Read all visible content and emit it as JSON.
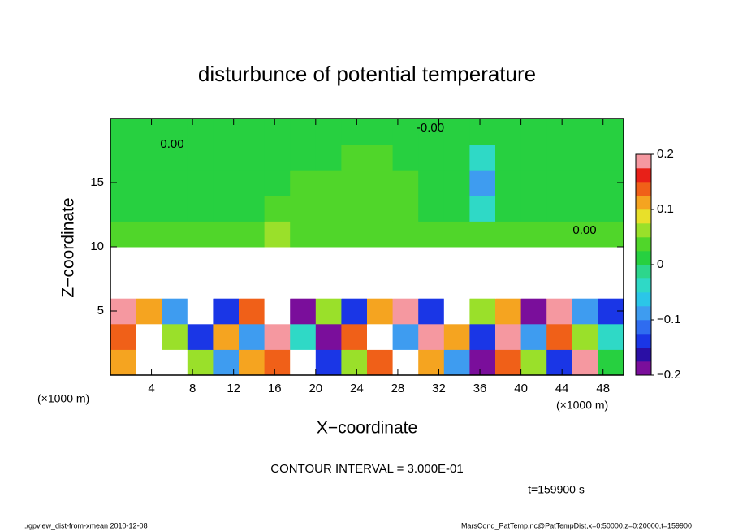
{
  "chart_data": {
    "type": "heatmap",
    "title": "disturbunce of potential temperature",
    "x_label": "X−coordinate",
    "y_label": "Z−coordinate",
    "x_unit": "(×1000 m)",
    "xlim": [
      0,
      50
    ],
    "xticks": [
      4,
      8,
      12,
      16,
      20,
      24,
      28,
      32,
      36,
      40,
      44,
      48
    ],
    "ylim": [
      0,
      20
    ],
    "yticks": [
      5,
      10,
      15
    ],
    "x": [
      1.25,
      3.75,
      6.25,
      8.75,
      11.25,
      13.75,
      16.25,
      18.75,
      21.25,
      23.75,
      26.25,
      28.75,
      31.25,
      33.75,
      36.25,
      38.75,
      41.25,
      43.75,
      46.25,
      48.75
    ],
    "z": [
      1,
      3,
      5,
      7,
      9,
      11,
      13,
      15,
      17,
      19
    ],
    "values": [
      [
        0.1,
        0.25,
        0.25,
        0.05,
        -0.1,
        0.1,
        0.15,
        0.25,
        -0.15,
        0.05,
        0.15,
        0.25,
        0.1,
        -0.1,
        -0.2,
        0.15,
        0.05,
        -0.15,
        0.2,
        0.0
      ],
      [
        0.15,
        0.25,
        0.05,
        -0.15,
        0.1,
        -0.1,
        0.2,
        -0.05,
        -0.2,
        0.15,
        0.25,
        -0.1,
        0.2,
        0.1,
        -0.15,
        0.2,
        -0.1,
        0.15,
        0.05,
        -0.05
      ],
      [
        0.2,
        0.1,
        -0.1,
        0.25,
        -0.15,
        0.15,
        0.25,
        -0.2,
        0.05,
        -0.15,
        0.1,
        0.2,
        -0.15,
        0.25,
        0.05,
        0.1,
        -0.2,
        0.2,
        -0.1,
        -0.15
      ],
      [
        0.3,
        0.3,
        0.3,
        0.3,
        0.3,
        0.3,
        0.3,
        0.3,
        0.3,
        0.3,
        0.3,
        0.3,
        0.3,
        0.3,
        0.3,
        0.3,
        0.3,
        0.3,
        0.3,
        0.3
      ],
      [
        0.3,
        0.3,
        0.3,
        0.3,
        0.3,
        0.3,
        0.3,
        0.3,
        0.3,
        0.3,
        0.3,
        0.3,
        0.3,
        0.3,
        0.3,
        0.3,
        0.3,
        0.3,
        0.3,
        0.3
      ],
      [
        0.03,
        0.03,
        0.04,
        0.03,
        0.03,
        0.04,
        0.05,
        0.04,
        0.03,
        0.04,
        0.03,
        0.03,
        0.04,
        0.03,
        0.04,
        0.03,
        0.03,
        0.03,
        0.03,
        0.03
      ],
      [
        0.0,
        0.01,
        0.02,
        0.02,
        0.02,
        0.02,
        0.03,
        0.03,
        0.03,
        0.03,
        0.03,
        0.03,
        0.02,
        0.02,
        -0.05,
        0.0,
        0.0,
        0.0,
        0.0,
        0.0
      ],
      [
        0.0,
        0.01,
        0.02,
        0.02,
        0.02,
        0.02,
        0.02,
        0.03,
        0.03,
        0.03,
        0.04,
        0.03,
        0.02,
        0.02,
        -0.1,
        0.0,
        0.0,
        0.0,
        0.0,
        0.0
      ],
      [
        0.0,
        0.01,
        0.01,
        0.02,
        0.02,
        0.02,
        0.02,
        0.02,
        0.02,
        0.03,
        0.03,
        0.02,
        0.02,
        0.01,
        -0.05,
        0.0,
        0.0,
        0.0,
        0.0,
        0.0
      ],
      [
        0.0,
        0.0,
        0.01,
        0.01,
        0.01,
        0.01,
        0.01,
        0.01,
        0.01,
        0.01,
        0.01,
        0.01,
        0.01,
        0.0,
        0.0,
        0.0,
        0.0,
        0.0,
        0.0,
        0.0
      ]
    ],
    "clim": [
      -0.2,
      0.2
    ],
    "colors": [
      "#7a0e9b",
      "#2a0fa5",
      "#1a36e6",
      "#2f6cf0",
      "#3e9cf0",
      "#2bc6e8",
      "#2fd9c6",
      "#2dd68c",
      "#27d040",
      "#50d62a",
      "#9ae02a",
      "#e8e02a",
      "#f5a420",
      "#f06018",
      "#e82018",
      "#f598a0"
    ],
    "colorbar_ticks": [
      0.2,
      0.1,
      0,
      {
        "value": -0.1,
        "label": "−0.1"
      },
      {
        "value": -0.2,
        "label": "−0.2"
      }
    ],
    "contour_labels": [
      "-0.00",
      "0.00",
      "0.00"
    ],
    "contour_interval": "CONTOUR INTERVAL = 3.000E-01",
    "time": "t=159900 s",
    "footer_left": "./gpview_dist-from-xmean  2010-12-08",
    "footer_right": "MarsCond_PatTemp.nc@PatTempDist,x=0:50000,z=0:20000,t=159900"
  }
}
